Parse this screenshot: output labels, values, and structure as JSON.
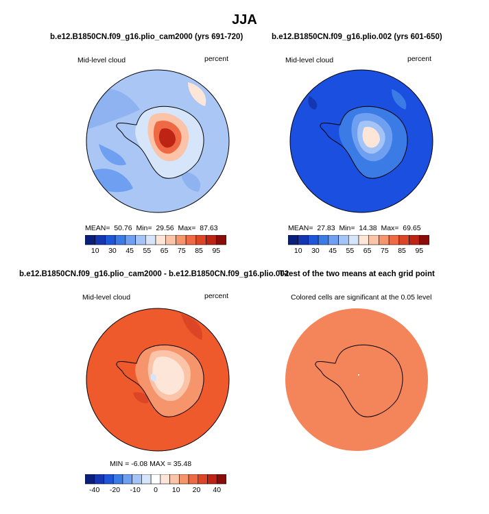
{
  "page": {
    "title": "JJA"
  },
  "panels": [
    {
      "title": "b.e12.B1850CN.f09_g16.plio_cam2000 (yrs 691-720)",
      "left_label": "Mid-level cloud",
      "right_label": "percent",
      "stats": {
        "mean_label": "MEAN=",
        "mean": "50.76",
        "min_label": "Min=",
        "min": "29.56",
        "max_label": "Max=",
        "max": "87.63"
      },
      "colorbar_ticks": [
        "10",
        "30",
        "45",
        "55",
        "65",
        "75",
        "85",
        "95"
      ]
    },
    {
      "title": "b.e12.B1850CN.f09_g16.plio.002 (yrs 601-650)",
      "left_label": "Mid-level cloud",
      "right_label": "percent",
      "stats": {
        "mean_label": "MEAN=",
        "mean": "27.83",
        "min_label": "Min=",
        "min": "14.38",
        "max_label": "Max=",
        "max": "69.65"
      },
      "colorbar_ticks": [
        "10",
        "30",
        "45",
        "55",
        "65",
        "75",
        "85",
        "95"
      ]
    },
    {
      "title": "b.e12.B1850CN.f09_g16.plio_cam2000 - b.e12.B1850CN.f09_g16.plio.002",
      "left_label": "Mid-level cloud",
      "right_label": "percent",
      "stats_text": "MIN =  -6.08  MAX =  35.48",
      "colorbar_ticks": [
        "-40",
        "-20",
        "-10",
        "0",
        "10",
        "20",
        "40"
      ]
    },
    {
      "title": "T-test of the two means at each grid point",
      "subtitle": "Colored cells are significant at the 0.05 level"
    }
  ],
  "colors": {
    "diverging_scale": [
      "#0a1f7a",
      "#1436b0",
      "#1f56d8",
      "#3a7be6",
      "#6f9ff0",
      "#a4c3f6",
      "#d6e5fa",
      "#fde6d8",
      "#fbc3a7",
      "#f6946c",
      "#ef6a44",
      "#dd4527",
      "#bd2413",
      "#8a0c08"
    ],
    "diff_scale": [
      "#0a1f7a",
      "#1436b0",
      "#1f56d8",
      "#3a7be6",
      "#6f9ff0",
      "#a4c3f6",
      "#d6e5fa",
      "#ffffff",
      "#fde6d8",
      "#fbc3a7",
      "#f6946c",
      "#ef6a44",
      "#dd4527",
      "#bd2413",
      "#8a0c08"
    ],
    "map_ocean_panel1": "#a9c6f5",
    "map_ocean_panel2": "#1a4fe0",
    "map_ocean_panel3": "#ef5a2c",
    "map_ocean_panel4": "#f4845a",
    "coastline": "#000000"
  }
}
